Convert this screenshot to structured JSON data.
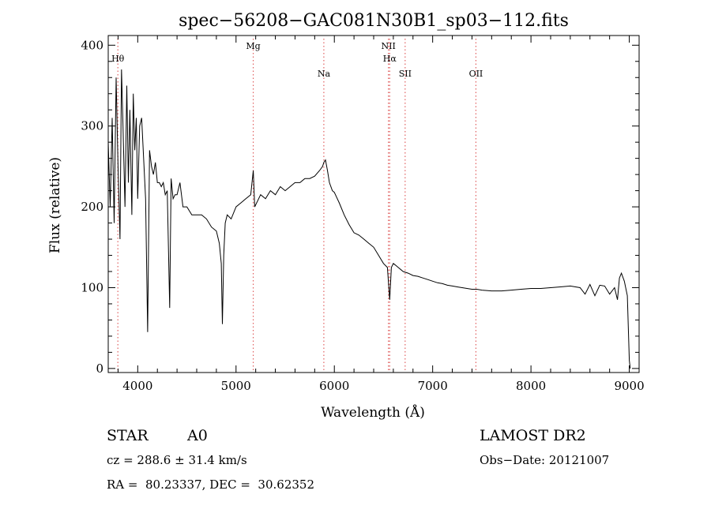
{
  "chart_data": {
    "type": "line",
    "title": "spec−56208−GAC081N30B1_sp03−112.fits",
    "xlabel": "Wavelength (Å)",
    "ylabel": "Flux (relative)",
    "xlim": [
      3700,
      9100
    ],
    "ylim": [
      -5,
      412
    ],
    "grid": false,
    "xticks": [
      4000,
      5000,
      6000,
      7000,
      8000,
      9000
    ],
    "xtick_labels": [
      "4000",
      "5000",
      "6000",
      "7000",
      "8000",
      "9000"
    ],
    "yticks": [
      0,
      100,
      200,
      300,
      400
    ],
    "ytick_labels": [
      "0",
      "100",
      "200",
      "300",
      "400"
    ],
    "line_color": "#000000",
    "marker_color": "#e06060",
    "line_markers": [
      {
        "label": "Hθ",
        "x": 3798,
        "row": 1
      },
      {
        "label": "Mg",
        "x": 5175,
        "row": 0
      },
      {
        "label": "Na",
        "x": 5893,
        "row": 2
      },
      {
        "label": "NII",
        "x": 6550,
        "row": 0
      },
      {
        "label": "Hα",
        "x": 6563,
        "row": 1
      },
      {
        "label": "SII",
        "x": 6720,
        "row": 2
      },
      {
        "label": "OII",
        "x": 7440,
        "row": 2
      }
    ],
    "series": [
      {
        "x": [
          3700,
          3720,
          3740,
          3760,
          3780,
          3800,
          3820,
          3835,
          3850,
          3870,
          3889,
          3905,
          3920,
          3940,
          3955,
          3970,
          3985,
          4000,
          4020,
          4040,
          4060,
          4080,
          4101,
          4120,
          4140,
          4160,
          4180,
          4200,
          4220,
          4240,
          4260,
          4280,
          4300,
          4325,
          4340,
          4360,
          4380,
          4400,
          4430,
          4460,
          4500,
          4550,
          4600,
          4650,
          4700,
          4750,
          4800,
          4830,
          4850,
          4861,
          4875,
          4890,
          4910,
          4950,
          5000,
          5050,
          5100,
          5150,
          5175,
          5190,
          5250,
          5300,
          5350,
          5400,
          5450,
          5500,
          5550,
          5600,
          5650,
          5700,
          5750,
          5800,
          5850,
          5880,
          5893,
          5910,
          5930,
          5950,
          5980,
          6000,
          6050,
          6100,
          6150,
          6200,
          6250,
          6300,
          6350,
          6400,
          6450,
          6500,
          6540,
          6563,
          6580,
          6600,
          6620,
          6650,
          6700,
          6750,
          6800,
          6850,
          6900,
          6950,
          7000,
          7050,
          7100,
          7150,
          7200,
          7250,
          7300,
          7350,
          7400,
          7450,
          7500,
          7600,
          7700,
          7800,
          7900,
          8000,
          8100,
          8200,
          8300,
          8400,
          8500,
          8550,
          8600,
          8650,
          8700,
          8750,
          8800,
          8850,
          8880,
          8900,
          8920,
          8950,
          8980,
          9000,
          9010
        ],
        "y": [
          280,
          200,
          310,
          180,
          360,
          250,
          160,
          370,
          300,
          200,
          350,
          230,
          320,
          190,
          340,
          270,
          310,
          210,
          300,
          310,
          260,
          210,
          45,
          270,
          250,
          240,
          255,
          230,
          230,
          225,
          230,
          215,
          220,
          75,
          235,
          210,
          215,
          215,
          230,
          200,
          200,
          190,
          190,
          190,
          185,
          175,
          170,
          155,
          130,
          55,
          140,
          180,
          190,
          185,
          200,
          205,
          210,
          215,
          245,
          200,
          215,
          210,
          220,
          215,
          225,
          220,
          225,
          230,
          230,
          235,
          235,
          238,
          245,
          250,
          255,
          258,
          245,
          230,
          220,
          218,
          205,
          190,
          178,
          168,
          165,
          160,
          155,
          150,
          140,
          130,
          125,
          85,
          125,
          130,
          128,
          125,
          120,
          118,
          115,
          114,
          112,
          110,
          108,
          106,
          105,
          103,
          102,
          101,
          100,
          99,
          98,
          98,
          97,
          96,
          96,
          97,
          98,
          99,
          99,
          100,
          101,
          102,
          100,
          92,
          104,
          90,
          103,
          102,
          92,
          100,
          85,
          112,
          118,
          108,
          90,
          10,
          0
        ]
      }
    ]
  },
  "info": {
    "object_class": "STAR",
    "subclass": "A0",
    "cz_line": "cz = 288.6 ± 31.4 km/s",
    "coords_line": "RA =  80.23337, DEC =  30.62352",
    "survey": "LAMOST DR2",
    "obs_date": "Obs−Date: 20121007"
  }
}
